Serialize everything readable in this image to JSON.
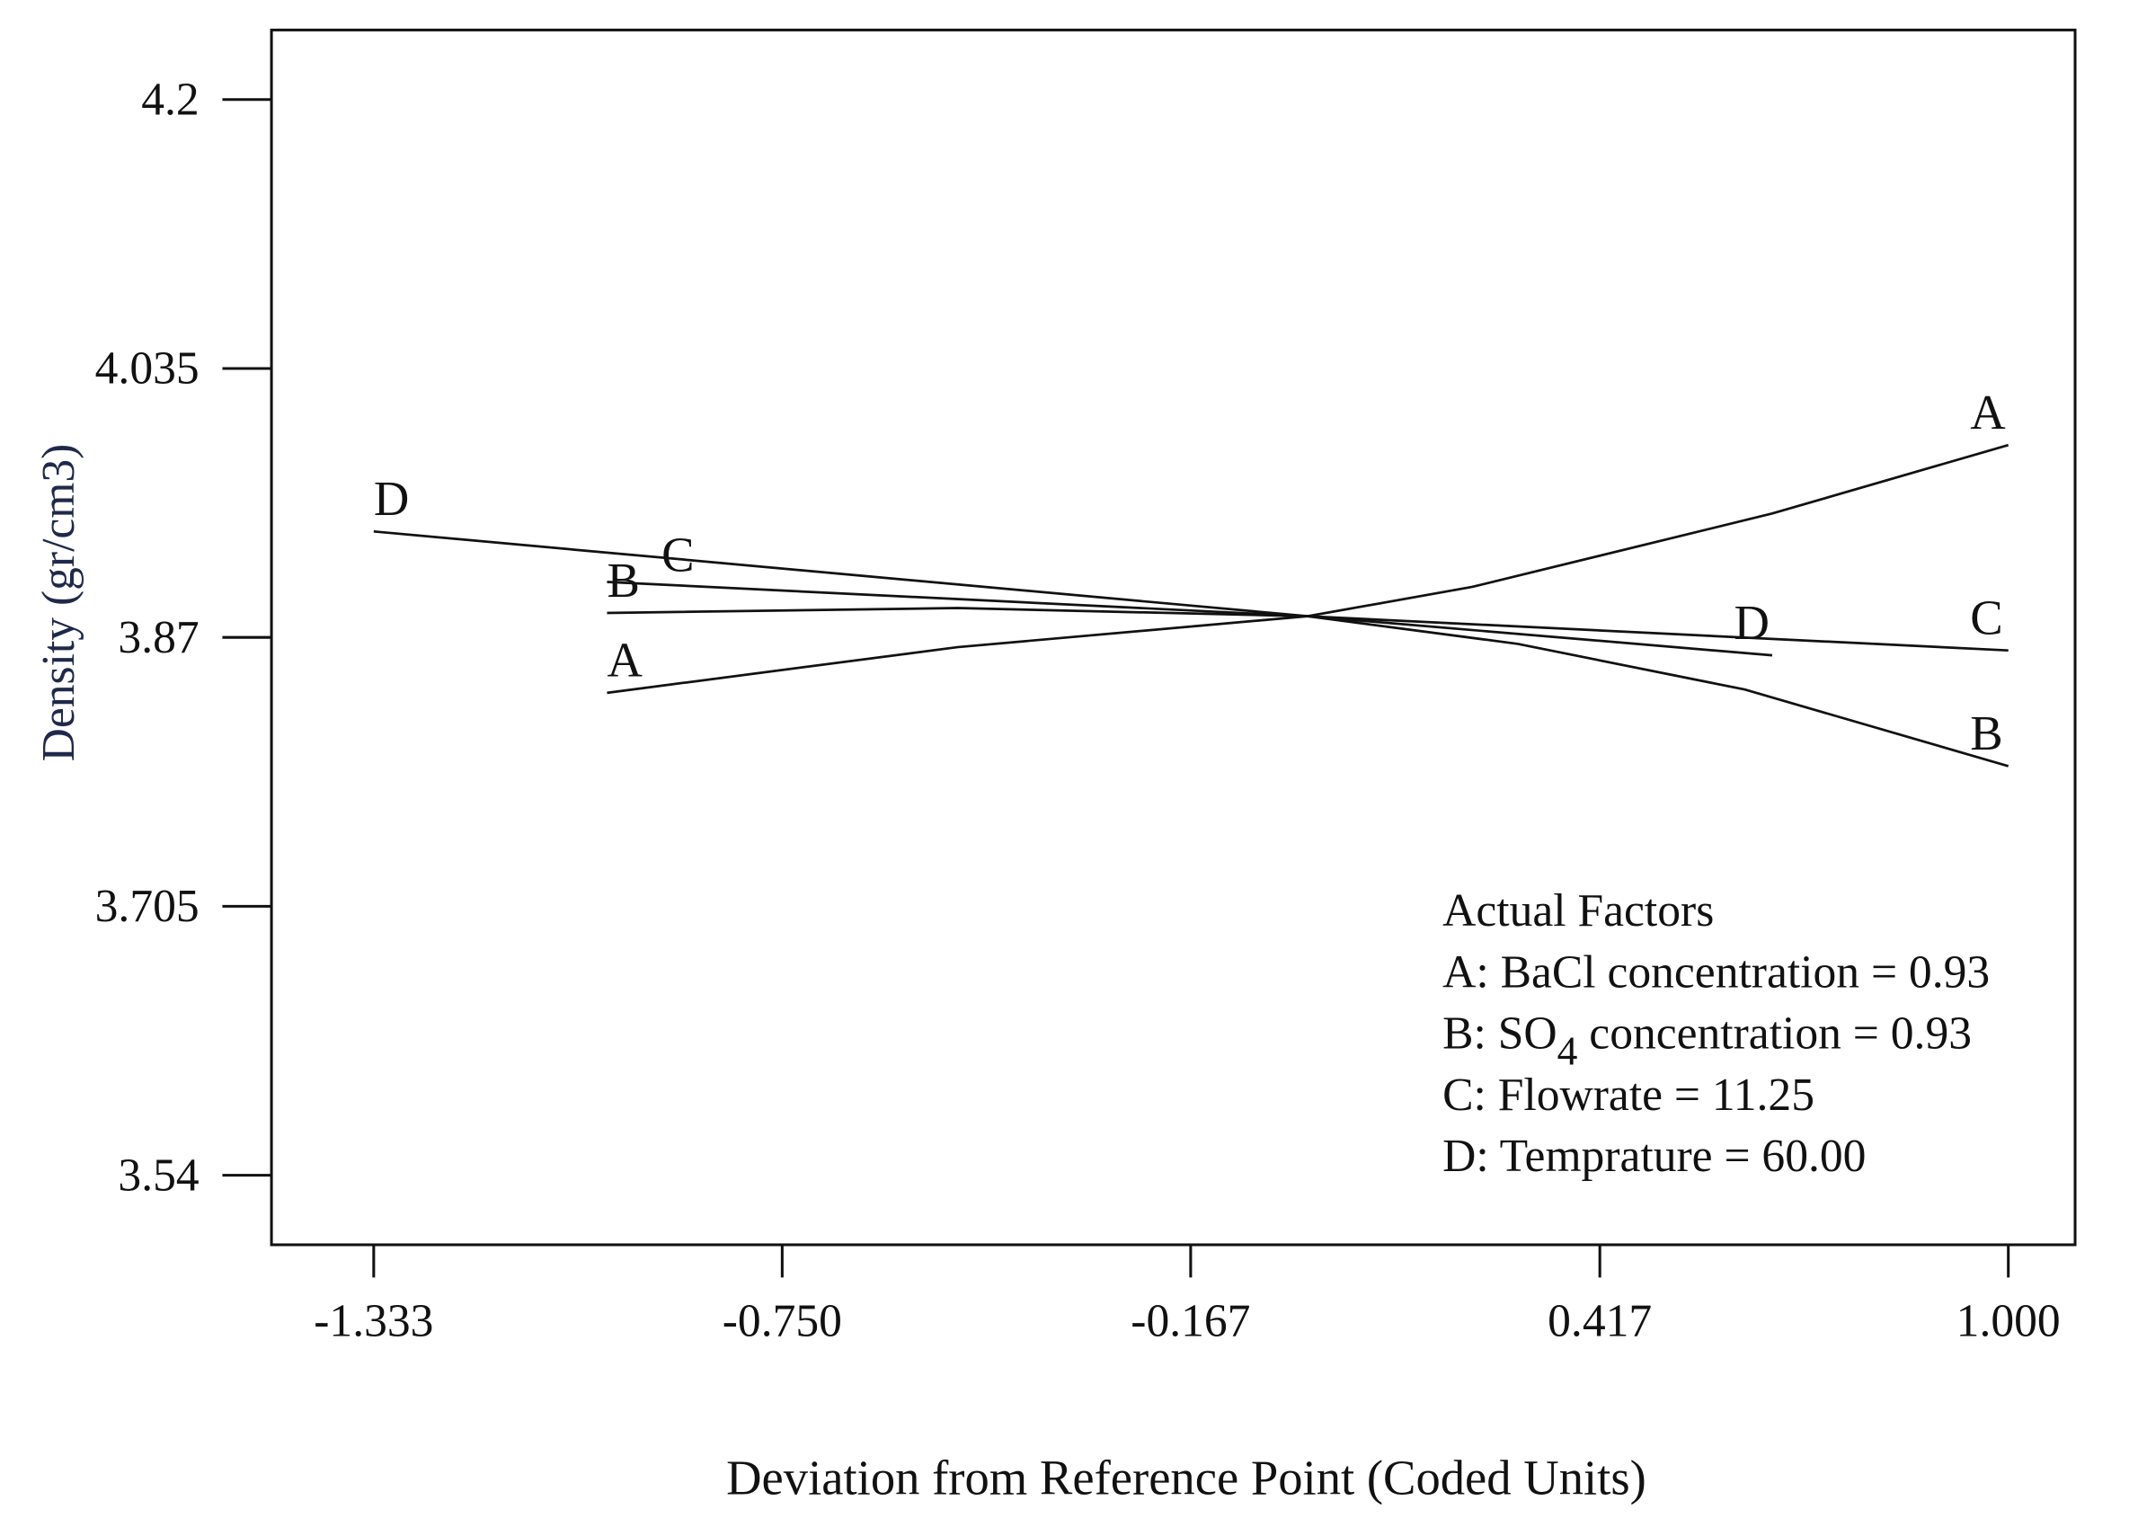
{
  "chart_data": {
    "type": "line",
    "title": "",
    "xlabel": "Deviation from Reference Point (Coded Units)",
    "ylabel": "Density (gr/cm3)",
    "ylabel_color": "#1f2a4a",
    "xlim": [
      -1.333,
      1.0
    ],
    "ylim": [
      3.54,
      4.2
    ],
    "x_ticks": [
      -1.333,
      -0.75,
      -0.167,
      0.417,
      1.0
    ],
    "x_tick_labels": [
      "-1.333",
      "-0.750",
      "-0.167",
      "0.417",
      "1.000"
    ],
    "y_ticks": [
      4.2,
      4.035,
      3.87,
      3.705,
      3.54
    ],
    "y_tick_labels": [
      "4.2",
      "4.035",
      "3.87",
      "3.705",
      "3.54"
    ],
    "grid": false,
    "series": [
      {
        "name": "A",
        "x": [
          -1.0,
          -0.5,
          0.0,
          0.235,
          0.663,
          1.0
        ],
        "y": [
          3.836,
          3.864,
          3.883,
          3.901,
          3.946,
          3.988
        ]
      },
      {
        "name": "B",
        "x": [
          -1.0,
          -0.5,
          0.0,
          0.3,
          0.624,
          1.0
        ],
        "y": [
          3.885,
          3.888,
          3.883,
          3.866,
          3.838,
          3.791
        ]
      },
      {
        "name": "C",
        "x": [
          -1.0,
          0.0,
          1.0
        ],
        "y": [
          3.904,
          3.883,
          3.862
        ]
      },
      {
        "name": "D",
        "x": [
          -1.333,
          0.0,
          0.663
        ],
        "y": [
          3.935,
          3.883,
          3.859
        ]
      }
    ],
    "annotations": {
      "title": "Actual Factors",
      "lines": [
        {
          "prefix": "A: BaCl concentration = 0.93",
          "sub": "",
          "suffix": ""
        },
        {
          "prefix": "B: SO",
          "sub": "4",
          "suffix": " concentration  = 0.93"
        },
        {
          "prefix": "C: Flowrate = 11.25",
          "sub": "",
          "suffix": ""
        },
        {
          "prefix": "D: Temprature = 60.00",
          "sub": "",
          "suffix": ""
        }
      ]
    }
  }
}
